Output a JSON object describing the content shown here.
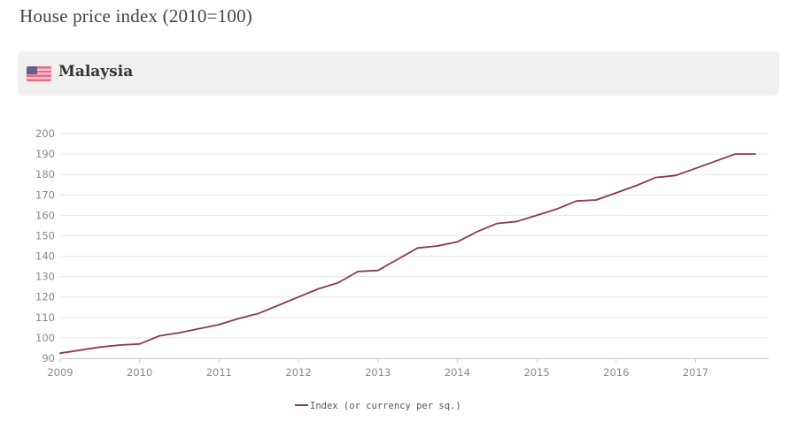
{
  "page": {
    "title": "House price index (2010=100)",
    "country": "Malaysia"
  },
  "colors": {
    "line": "#8a3a48",
    "grid": "#e6e6e6",
    "tick_text": "#8a8a8a",
    "panel_bg": "#f2efef"
  },
  "icons": {
    "flag": "malaysia-flag-icon"
  },
  "chart_data": {
    "type": "line",
    "title": "",
    "xlabel": "",
    "ylabel": "",
    "xlim": [
      2009,
      2017.92
    ],
    "ylim": [
      90,
      200
    ],
    "x_ticks": [
      2009,
      2010,
      2011,
      2012,
      2013,
      2014,
      2015,
      2016,
      2017
    ],
    "x_tick_labels": [
      "2009",
      "2010",
      "2011",
      "2012",
      "2013",
      "2014",
      "2015",
      "2016",
      "2017"
    ],
    "y_ticks": [
      90,
      100,
      110,
      120,
      130,
      140,
      150,
      160,
      170,
      180,
      190,
      200
    ],
    "y_tick_labels": [
      "90",
      "100",
      "110",
      "120",
      "130",
      "140",
      "150",
      "160",
      "170",
      "180",
      "190",
      "200"
    ],
    "grid": true,
    "legend_position": "bottom",
    "series": [
      {
        "name": "Index (or currency per sq.)",
        "color": "#8a3a48",
        "x": [
          2009.0,
          2009.25,
          2009.5,
          2009.75,
          2010.0,
          2010.25,
          2010.5,
          2010.75,
          2011.0,
          2011.25,
          2011.5,
          2011.75,
          2012.0,
          2012.25,
          2012.5,
          2012.75,
          2013.0,
          2013.25,
          2013.5,
          2013.75,
          2014.0,
          2014.25,
          2014.5,
          2014.75,
          2015.0,
          2015.25,
          2015.5,
          2015.75,
          2016.0,
          2016.25,
          2016.5,
          2016.75,
          2017.0,
          2017.25,
          2017.5,
          2017.75
        ],
        "values": [
          92.5,
          94.0,
          95.5,
          96.5,
          97.0,
          101.0,
          102.5,
          104.5,
          106.5,
          109.5,
          112.0,
          116.0,
          120.0,
          124.0,
          127.0,
          132.5,
          133.0,
          138.5,
          144.0,
          145.0,
          147.0,
          152.0,
          156.0,
          157.0,
          160.0,
          163.0,
          167.0,
          167.5,
          171.0,
          174.5,
          178.5,
          179.5,
          183.0,
          186.5,
          190.0,
          190.0
        ]
      }
    ]
  }
}
